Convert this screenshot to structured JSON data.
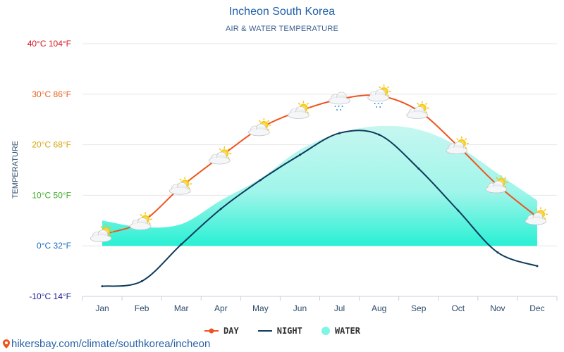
{
  "header": {
    "title": "Incheon South Korea",
    "subtitle": "AIR & WATER TEMPERATURE"
  },
  "footer": {
    "source": "hikersbay.com/climate/southkorea/incheon"
  },
  "colors": {
    "day": "#f0531f",
    "night": "#0d3b5c",
    "water_top": "#c6f7f0",
    "water_bottom": "#28f0d4"
  },
  "chart_data": {
    "type": "line",
    "ylabel": "TEMPERATURE",
    "categories": [
      "Jan",
      "Feb",
      "Mar",
      "Apr",
      "May",
      "Jun",
      "Jul",
      "Aug",
      "Sep",
      "Oct",
      "Nov",
      "Dec"
    ],
    "ylim": [
      -10,
      40
    ],
    "yticks": [
      {
        "value": 40,
        "label": "40°C 104°F",
        "color": "#d9141e"
      },
      {
        "value": 30,
        "label": "30°C 86°F",
        "color": "#e8601c"
      },
      {
        "value": 20,
        "label": "20°C 68°F",
        "color": "#d7a50c"
      },
      {
        "value": 10,
        "label": "10°C 50°F",
        "color": "#3fae2a"
      },
      {
        "value": 0,
        "label": "0°C 32°F",
        "color": "#1b6fc4"
      },
      {
        "value": -10,
        "label": "-10°C 14°F",
        "color": "#1a1a99"
      }
    ],
    "series": [
      {
        "name": "DAY",
        "type": "line",
        "values": [
          2.3,
          4.7,
          11.7,
          17.7,
          23.3,
          26.7,
          29,
          29.7,
          26.7,
          19.7,
          12,
          5.7
        ]
      },
      {
        "name": "NIGHT",
        "type": "line",
        "values": [
          -8,
          -7,
          0.3,
          7.3,
          13,
          18,
          22.3,
          22,
          15.3,
          7,
          -1.3,
          -4
        ]
      },
      {
        "name": "WATER",
        "type": "area",
        "values": [
          5,
          3.7,
          4.3,
          9,
          13.3,
          19,
          22.3,
          23.7,
          23,
          19.7,
          14.3,
          9
        ]
      }
    ],
    "weather_icons": [
      "partly-cloudy",
      "partly-cloudy",
      "partly-cloudy",
      "partly-cloudy",
      "partly-cloudy",
      "partly-cloudy",
      "rain-cloud",
      "rain-cloud-sun",
      "partly-cloudy",
      "partly-cloudy",
      "partly-cloudy",
      "partly-cloudy"
    ],
    "grid": true,
    "legend": "bottom-center"
  }
}
